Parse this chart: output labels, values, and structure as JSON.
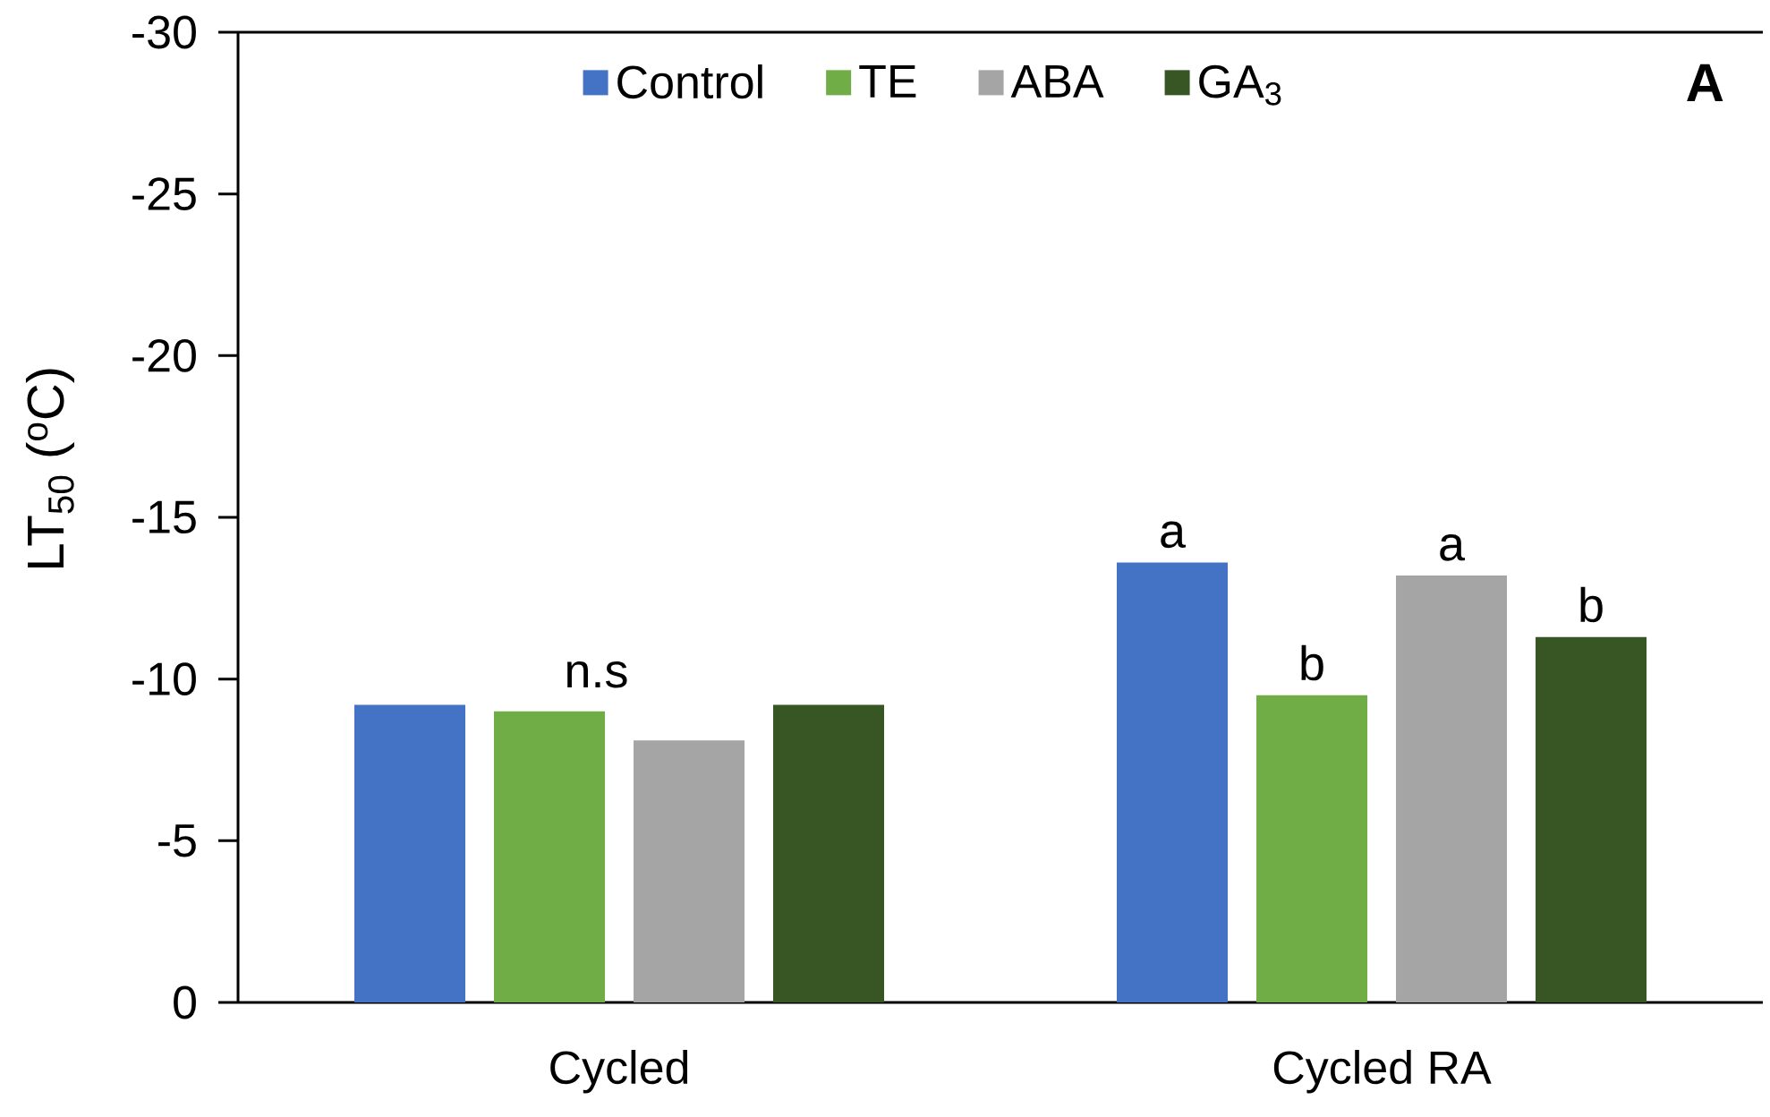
{
  "chart_data": {
    "type": "bar",
    "categories": [
      "Cycled",
      "Cycled RA"
    ],
    "series": [
      {
        "name": "Control",
        "color": "#4472c4",
        "values": [
          -9.2,
          -13.6
        ],
        "value_labels": [
          null,
          "a"
        ]
      },
      {
        "name": "TE",
        "color": "#70ad47",
        "values": [
          -9.0,
          -9.5
        ],
        "value_labels": [
          null,
          "b"
        ]
      },
      {
        "name": "ABA",
        "color": "#a5a5a5",
        "values": [
          -8.1,
          -13.2
        ],
        "value_labels": [
          null,
          "a"
        ]
      },
      {
        "name": "GA$_{3}$",
        "color": "#375623",
        "values": [
          -9.2,
          -11.3
        ],
        "value_labels": [
          null,
          "b"
        ]
      }
    ],
    "ylabel": "LT$_{50}$ ($^{o}$C)",
    "ylim": [
      0,
      -30
    ],
    "yticks": [
      -30,
      -25,
      -20,
      -15,
      -10,
      -5,
      0
    ],
    "legend": "top",
    "annotations": [
      "A",
      "n.s"
    ]
  }
}
